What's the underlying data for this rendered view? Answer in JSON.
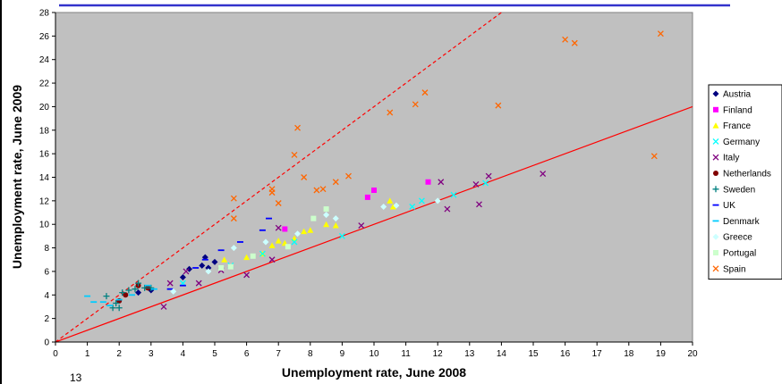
{
  "page": {
    "slide_number": "13"
  },
  "chart_data": {
    "type": "scatter",
    "title": "",
    "xlabel": "Unemployment rate, June 2008",
    "ylabel": "Unemployment rate, June 2009",
    "xlim": [
      0,
      20
    ],
    "ylim": [
      0,
      28
    ],
    "xticks": [
      0,
      1,
      2,
      3,
      4,
      5,
      6,
      7,
      8,
      9,
      10,
      11,
      12,
      13,
      14,
      15,
      16,
      17,
      18,
      19,
      20
    ],
    "yticks": [
      0,
      2,
      4,
      6,
      8,
      10,
      12,
      14,
      16,
      18,
      20,
      22,
      24,
      26,
      28
    ],
    "grid": false,
    "background": "#c0c0c0",
    "legend_position": "right",
    "reference_lines": [
      {
        "kind": "y = x",
        "style": "solid",
        "color": "#ff0000",
        "points": [
          [
            0,
            0
          ],
          [
            20,
            20
          ]
        ]
      },
      {
        "kind": "y = 2x",
        "style": "dashed",
        "color": "#ff0000",
        "points": [
          [
            0,
            0
          ],
          [
            14,
            28
          ]
        ]
      }
    ],
    "series": [
      {
        "name": "Austria",
        "marker": "diamond",
        "color": "#000080",
        "points": [
          [
            2.6,
            4.2
          ],
          [
            3.0,
            4.4
          ],
          [
            4.0,
            5.5
          ],
          [
            4.2,
            6.2
          ],
          [
            4.6,
            6.5
          ],
          [
            4.7,
            7.2
          ],
          [
            4.8,
            6.3
          ],
          [
            5.0,
            6.8
          ]
        ]
      },
      {
        "name": "Finland",
        "marker": "square",
        "color": "#ff00ff",
        "points": [
          [
            7.2,
            9.6
          ],
          [
            9.8,
            12.3
          ],
          [
            10.0,
            12.9
          ],
          [
            11.7,
            13.6
          ]
        ]
      },
      {
        "name": "France",
        "marker": "triangle",
        "color": "#ffff00",
        "points": [
          [
            5.3,
            7.0
          ],
          [
            6.0,
            7.2
          ],
          [
            6.5,
            7.5
          ],
          [
            6.8,
            8.2
          ],
          [
            7.0,
            8.6
          ],
          [
            7.2,
            8.4
          ],
          [
            7.5,
            8.8
          ],
          [
            7.8,
            9.4
          ],
          [
            8.0,
            9.5
          ],
          [
            8.5,
            10.0
          ],
          [
            8.8,
            9.9
          ],
          [
            10.5,
            12.0
          ],
          [
            10.6,
            11.5
          ]
        ]
      },
      {
        "name": "Germany",
        "marker": "x",
        "color": "#00ffff",
        "points": [
          [
            4.0,
            5.0
          ],
          [
            5.5,
            6.5
          ],
          [
            6.5,
            7.5
          ],
          [
            7.5,
            8.5
          ],
          [
            9.0,
            9.0
          ],
          [
            11.2,
            11.5
          ],
          [
            11.5,
            12.0
          ],
          [
            12.5,
            12.5
          ],
          [
            13.5,
            13.5
          ]
        ]
      },
      {
        "name": "Italy",
        "marker": "x",
        "color": "#800080",
        "points": [
          [
            3.4,
            3.0
          ],
          [
            3.6,
            5.0
          ],
          [
            4.1,
            6.0
          ],
          [
            4.5,
            5.0
          ],
          [
            5.2,
            6.1
          ],
          [
            6.0,
            5.7
          ],
          [
            6.8,
            7.0
          ],
          [
            7.0,
            9.7
          ],
          [
            9.6,
            9.9
          ],
          [
            12.1,
            13.6
          ],
          [
            12.3,
            11.3
          ],
          [
            13.2,
            13.4
          ],
          [
            13.3,
            11.7
          ],
          [
            13.6,
            14.1
          ],
          [
            15.3,
            14.3
          ]
        ]
      },
      {
        "name": "Netherlands",
        "marker": "circle",
        "color": "#800000",
        "points": [
          [
            2.0,
            3.5
          ],
          [
            2.2,
            4.0
          ],
          [
            2.6,
            4.8
          ],
          [
            2.9,
            4.6
          ]
        ]
      },
      {
        "name": "Sweden",
        "marker": "plus",
        "color": "#008080",
        "points": [
          [
            1.6,
            3.9
          ],
          [
            1.8,
            2.9
          ],
          [
            1.9,
            3.3
          ],
          [
            2.0,
            2.9
          ],
          [
            2.1,
            4.2
          ],
          [
            2.3,
            4.4
          ],
          [
            2.5,
            4.5
          ],
          [
            2.6,
            5.0
          ],
          [
            2.8,
            4.6
          ],
          [
            3.0,
            4.6
          ]
        ]
      },
      {
        "name": "UK",
        "marker": "dash",
        "color": "#0000ff",
        "points": [
          [
            3.6,
            4.5
          ],
          [
            4.0,
            4.8
          ],
          [
            4.4,
            6.3
          ],
          [
            4.7,
            7.0
          ],
          [
            5.2,
            7.8
          ],
          [
            5.8,
            8.5
          ],
          [
            6.5,
            9.5
          ],
          [
            6.7,
            10.5
          ]
        ]
      },
      {
        "name": "Denmark",
        "marker": "dash",
        "color": "#00ccff",
        "points": [
          [
            1.0,
            3.9
          ],
          [
            1.2,
            3.4
          ],
          [
            1.5,
            3.4
          ],
          [
            1.7,
            3.1
          ],
          [
            2.0,
            3.6
          ],
          [
            2.4,
            4.0
          ],
          [
            2.9,
            4.8
          ],
          [
            3.1,
            4.5
          ]
        ]
      },
      {
        "name": "Greece",
        "marker": "diamond",
        "color": "#ccffff",
        "points": [
          [
            3.7,
            4.3
          ],
          [
            4.8,
            6.0
          ],
          [
            5.6,
            8.0
          ],
          [
            6.6,
            8.5
          ],
          [
            7.6,
            9.2
          ],
          [
            8.5,
            10.8
          ],
          [
            8.8,
            10.5
          ],
          [
            10.3,
            11.5
          ],
          [
            10.7,
            11.6
          ],
          [
            12.0,
            12.0
          ]
        ]
      },
      {
        "name": "Portugal",
        "marker": "square",
        "color": "#ccffcc",
        "points": [
          [
            5.2,
            6.3
          ],
          [
            5.5,
            6.4
          ],
          [
            6.2,
            7.3
          ],
          [
            7.3,
            8.1
          ],
          [
            8.1,
            10.5
          ],
          [
            8.5,
            11.3
          ]
        ]
      },
      {
        "name": "Spain",
        "marker": "x",
        "color": "#ff6600",
        "points": [
          [
            5.6,
            12.2
          ],
          [
            5.6,
            10.5
          ],
          [
            6.8,
            13.0
          ],
          [
            6.8,
            12.7
          ],
          [
            7.0,
            11.8
          ],
          [
            7.5,
            15.9
          ],
          [
            7.6,
            18.2
          ],
          [
            7.8,
            14.0
          ],
          [
            8.2,
            12.9
          ],
          [
            8.4,
            13.0
          ],
          [
            8.8,
            13.6
          ],
          [
            9.2,
            14.1
          ],
          [
            10.5,
            19.5
          ],
          [
            11.3,
            20.2
          ],
          [
            11.6,
            21.2
          ],
          [
            13.9,
            20.1
          ],
          [
            16.0,
            25.7
          ],
          [
            16.3,
            25.4
          ],
          [
            18.8,
            15.8
          ],
          [
            19.0,
            26.2
          ]
        ]
      }
    ]
  }
}
